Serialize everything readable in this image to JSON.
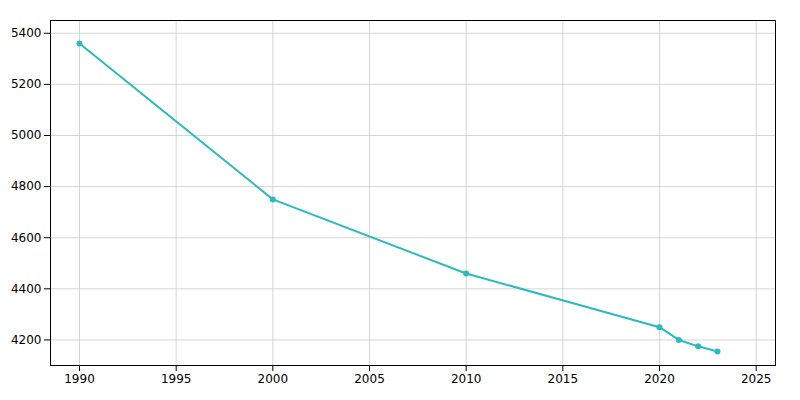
{
  "chart_data": {
    "type": "line",
    "x": [
      1990,
      2000,
      2010,
      2020,
      2021,
      2022,
      2023
    ],
    "values": [
      5360,
      4750,
      4460,
      4250,
      4200,
      4175,
      4155
    ],
    "color": "#2abcbc",
    "marker": "o",
    "xlim": [
      1988.5,
      2026
    ],
    "xticks": [
      1990,
      1995,
      2000,
      2005,
      2010,
      2015,
      2020,
      2025
    ],
    "ylim": [
      4100,
      5450
    ],
    "yticks": [
      4200,
      4400,
      4600,
      4800,
      5000,
      5200,
      5400
    ],
    "grid": true
  }
}
